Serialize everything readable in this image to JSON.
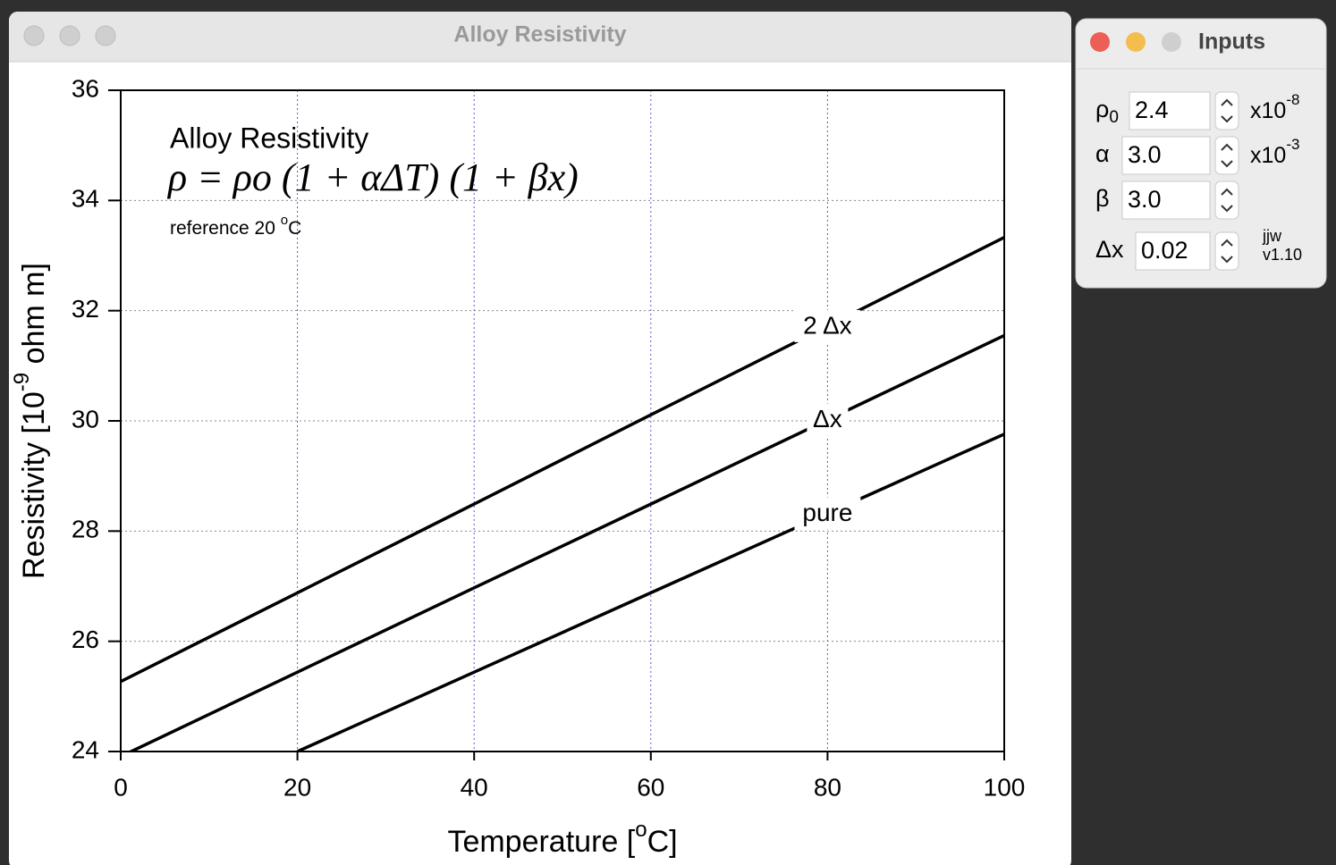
{
  "main_window": {
    "title": "Alloy Resistivity"
  },
  "inputs_window": {
    "title": "Inputs",
    "rows": [
      {
        "label": "ρ",
        "label_sub": "0",
        "value": "2.4",
        "unit": "x10",
        "unit_sup": "-8"
      },
      {
        "label": "α",
        "value": "3.0",
        "unit": "x10",
        "unit_sup": "-3"
      },
      {
        "label": "β",
        "value": "3.0"
      },
      {
        "label": "Δx",
        "value": "0.02"
      }
    ],
    "note": [
      "jjw",
      "v1.10"
    ]
  },
  "chart_data": {
    "type": "line",
    "title": "Alloy Resistivity",
    "formula": "ρ = ρo (1 + αΔT) (1 + βx)",
    "reference_parts": [
      "reference 20 ",
      "o",
      "C"
    ],
    "xlabel_parts": [
      "Temperature [",
      "o",
      "C]"
    ],
    "ylabel_parts": [
      "Resistivity [10",
      "-9",
      " ohm m]"
    ],
    "x": [
      0,
      20,
      40,
      60,
      80,
      100
    ],
    "series": [
      {
        "name": "pure",
        "color": "#000000",
        "values": [
          null,
          24.0,
          25.44,
          26.88,
          28.32,
          29.76
        ]
      },
      {
        "name": "Δx",
        "color": "#000000",
        "values": [
          23.91,
          25.44,
          26.97,
          28.49,
          30.02,
          31.55
        ]
      },
      {
        "name": "2 Δx",
        "color": "#000000",
        "values": [
          25.27,
          26.88,
          28.49,
          30.11,
          31.72,
          33.33
        ]
      }
    ],
    "xlim": [
      0,
      100
    ],
    "xticks": [
      0,
      20,
      40,
      60,
      80,
      100
    ],
    "ylim": [
      24,
      36
    ],
    "yticks": [
      24,
      26,
      28,
      30,
      32,
      34,
      36
    ],
    "grid": true
  }
}
